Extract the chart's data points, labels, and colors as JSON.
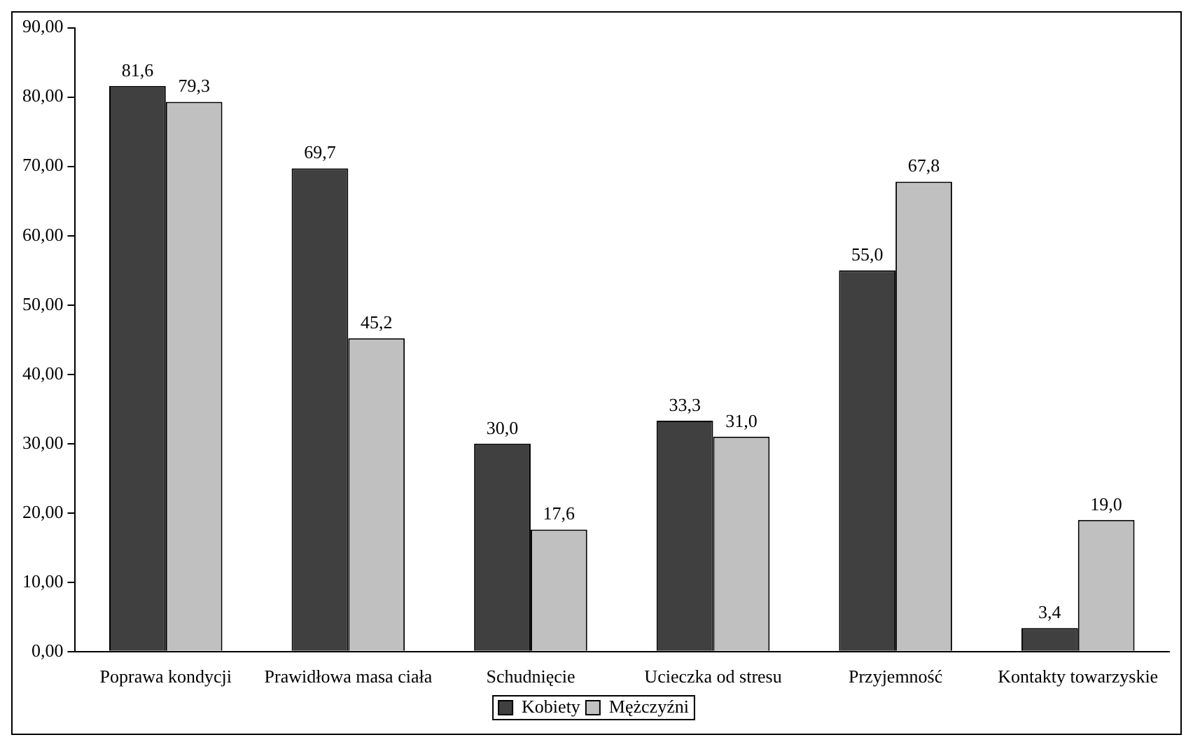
{
  "chart_data": {
    "type": "bar",
    "categories": [
      "Poprawa kondycji",
      "Prawidłowa masa ciała",
      "Schudnięcie",
      "Ucieczka od stresu",
      "Przyjemność",
      "Kontakty towarzyskie"
    ],
    "series": [
      {
        "name": "Kobiety",
        "color": "#404040",
        "values": [
          81.6,
          69.7,
          30.0,
          33.3,
          55.0,
          3.4
        ],
        "value_labels": [
          "81,6",
          "69,7",
          "30,0",
          "33,3",
          "55,0",
          "3,4"
        ]
      },
      {
        "name": "Mężczyźni",
        "color": "#c0c0c0",
        "values": [
          79.3,
          45.2,
          17.6,
          31.0,
          67.8,
          19.0
        ],
        "value_labels": [
          "79,3",
          "45,2",
          "17,6",
          "31,0",
          "67,8",
          "19,0"
        ]
      }
    ],
    "ylim": [
      0,
      90
    ],
    "yticks": [
      {
        "value": 0,
        "label": "0,00"
      },
      {
        "value": 10,
        "label": "10,00"
      },
      {
        "value": 20,
        "label": "20,00"
      },
      {
        "value": 30,
        "label": "30,00"
      },
      {
        "value": 40,
        "label": "40,00"
      },
      {
        "value": 50,
        "label": "50,00"
      },
      {
        "value": 60,
        "label": "60,00"
      },
      {
        "value": 70,
        "label": "70,00"
      },
      {
        "value": 80,
        "label": "80,00"
      },
      {
        "value": 90,
        "label": "90,00"
      }
    ],
    "grid": false,
    "legend": "bottom"
  }
}
